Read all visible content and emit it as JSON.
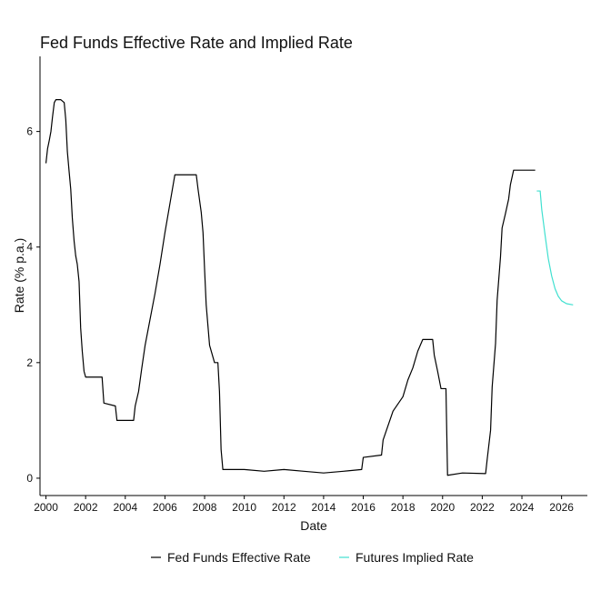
{
  "chart_data": {
    "type": "line",
    "title": "Fed Funds Effective Rate and Implied Rate",
    "xlabel": "Date",
    "ylabel": "Rate (% p.a.)",
    "xlim": [
      1999.7,
      2027.3
    ],
    "ylim": [
      -0.3,
      7.3
    ],
    "x_ticks": [
      2000,
      2002,
      2004,
      2006,
      2008,
      2010,
      2012,
      2014,
      2016,
      2018,
      2020,
      2022,
      2024,
      2026
    ],
    "y_ticks": [
      0,
      2,
      4,
      6
    ],
    "grid": false,
    "legend_position": "bottom",
    "series": [
      {
        "name": "Fed Funds Effective Rate",
        "color": "#000000",
        "points": [
          [
            2000.0,
            5.45
          ],
          [
            2000.08,
            5.7
          ],
          [
            2000.17,
            5.85
          ],
          [
            2000.25,
            6.0
          ],
          [
            2000.33,
            6.25
          ],
          [
            2000.42,
            6.5
          ],
          [
            2000.5,
            6.55
          ],
          [
            2000.75,
            6.55
          ],
          [
            2000.92,
            6.5
          ],
          [
            2001.0,
            6.2
          ],
          [
            2001.08,
            5.65
          ],
          [
            2001.17,
            5.3
          ],
          [
            2001.25,
            5.0
          ],
          [
            2001.33,
            4.5
          ],
          [
            2001.42,
            4.1
          ],
          [
            2001.5,
            3.85
          ],
          [
            2001.58,
            3.7
          ],
          [
            2001.67,
            3.4
          ],
          [
            2001.75,
            2.6
          ],
          [
            2001.83,
            2.2
          ],
          [
            2001.92,
            1.85
          ],
          [
            2002.0,
            1.75
          ],
          [
            2002.5,
            1.75
          ],
          [
            2002.83,
            1.75
          ],
          [
            2002.92,
            1.3
          ],
          [
            2003.5,
            1.25
          ],
          [
            2003.58,
            1.0
          ],
          [
            2004.0,
            1.0
          ],
          [
            2004.42,
            1.0
          ],
          [
            2004.5,
            1.25
          ],
          [
            2004.67,
            1.5
          ],
          [
            2004.83,
            1.9
          ],
          [
            2005.0,
            2.3
          ],
          [
            2005.25,
            2.75
          ],
          [
            2005.5,
            3.2
          ],
          [
            2005.75,
            3.7
          ],
          [
            2006.0,
            4.25
          ],
          [
            2006.25,
            4.75
          ],
          [
            2006.5,
            5.25
          ],
          [
            2007.0,
            5.25
          ],
          [
            2007.58,
            5.25
          ],
          [
            2007.67,
            5.0
          ],
          [
            2007.83,
            4.6
          ],
          [
            2007.92,
            4.25
          ],
          [
            2008.0,
            3.6
          ],
          [
            2008.08,
            3.0
          ],
          [
            2008.25,
            2.3
          ],
          [
            2008.5,
            2.0
          ],
          [
            2008.67,
            2.0
          ],
          [
            2008.75,
            1.5
          ],
          [
            2008.83,
            0.5
          ],
          [
            2008.92,
            0.15
          ],
          [
            2009.0,
            0.15
          ],
          [
            2010.0,
            0.15
          ],
          [
            2011.0,
            0.12
          ],
          [
            2012.0,
            0.15
          ],
          [
            2013.0,
            0.12
          ],
          [
            2014.0,
            0.09
          ],
          [
            2015.0,
            0.12
          ],
          [
            2015.92,
            0.15
          ],
          [
            2016.0,
            0.36
          ],
          [
            2016.92,
            0.4
          ],
          [
            2017.0,
            0.66
          ],
          [
            2017.25,
            0.91
          ],
          [
            2017.5,
            1.16
          ],
          [
            2018.0,
            1.41
          ],
          [
            2018.25,
            1.7
          ],
          [
            2018.5,
            1.91
          ],
          [
            2018.75,
            2.2
          ],
          [
            2019.0,
            2.4
          ],
          [
            2019.5,
            2.4
          ],
          [
            2019.58,
            2.13
          ],
          [
            2019.75,
            1.85
          ],
          [
            2019.92,
            1.55
          ],
          [
            2020.17,
            1.55
          ],
          [
            2020.25,
            0.05
          ],
          [
            2021.0,
            0.09
          ],
          [
            2022.17,
            0.08
          ],
          [
            2022.25,
            0.33
          ],
          [
            2022.42,
            0.83
          ],
          [
            2022.5,
            1.58
          ],
          [
            2022.67,
            2.33
          ],
          [
            2022.75,
            3.08
          ],
          [
            2022.92,
            3.83
          ],
          [
            2023.0,
            4.33
          ],
          [
            2023.17,
            4.58
          ],
          [
            2023.33,
            4.83
          ],
          [
            2023.42,
            5.08
          ],
          [
            2023.58,
            5.33
          ],
          [
            2024.67,
            5.33
          ]
        ]
      },
      {
        "name": "Futures Implied Rate",
        "color": "#40E0D0",
        "points": [
          [
            2024.75,
            4.97
          ],
          [
            2024.92,
            4.97
          ],
          [
            2025.0,
            4.65
          ],
          [
            2025.17,
            4.2
          ],
          [
            2025.33,
            3.8
          ],
          [
            2025.5,
            3.5
          ],
          [
            2025.67,
            3.28
          ],
          [
            2025.83,
            3.15
          ],
          [
            2026.0,
            3.07
          ],
          [
            2026.25,
            3.02
          ],
          [
            2026.58,
            3.0
          ]
        ]
      }
    ]
  }
}
